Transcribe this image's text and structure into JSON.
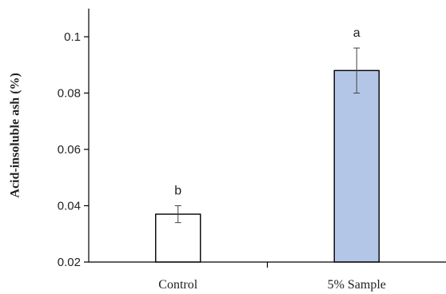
{
  "chart_data": {
    "type": "bar",
    "title": "",
    "xlabel": "",
    "ylabel": "Acid-insoluble ash (%)",
    "ylim": [
      0.02,
      0.11
    ],
    "yticks": [
      0.02,
      0.04,
      0.06,
      0.08,
      0.1
    ],
    "ytick_labels": [
      "0.02",
      "0.04",
      "0.06",
      "0.08",
      "0.1"
    ],
    "categories": [
      "Control",
      "5% Sample"
    ],
    "values": [
      0.037,
      0.088
    ],
    "errors": [
      0.003,
      0.008
    ],
    "significance_labels": [
      "b",
      "a"
    ],
    "bar_colors": [
      "#ffffff",
      "#b4c6e7"
    ],
    "bar_edge_color": "#000000",
    "grid": false,
    "legend": "none"
  }
}
